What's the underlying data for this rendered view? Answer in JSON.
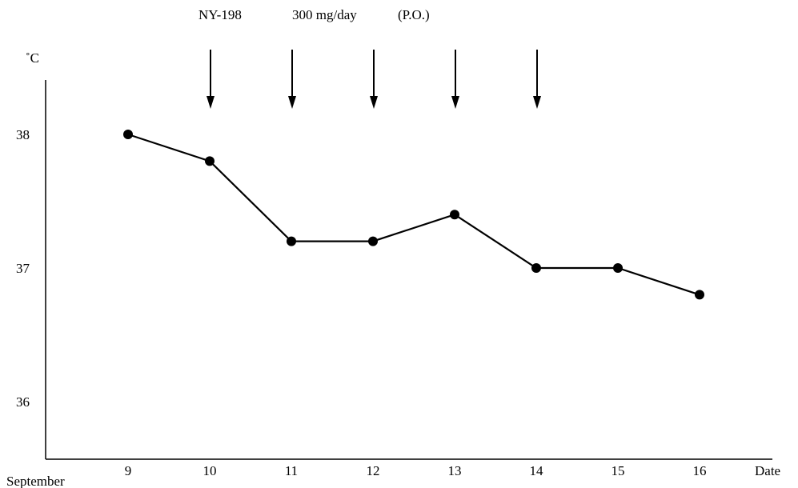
{
  "chart_data": {
    "type": "line",
    "header": [
      "NY-198",
      "300 mg/day",
      "(P.O.)"
    ],
    "y_unit": "˚C",
    "x_axis_label": "Date",
    "x_group_label": "September",
    "x": [
      9,
      10,
      11,
      12,
      13,
      14,
      15,
      16
    ],
    "series": [
      {
        "values": [
          38.0,
          37.8,
          37.2,
          37.2,
          37.4,
          37.0,
          37.0,
          36.8
        ]
      }
    ],
    "dose_days": [
      10,
      11,
      12,
      13,
      14
    ],
    "xlim": [
      8,
      16
    ],
    "ylim": [
      35.6,
      38.4
    ],
    "yticks": [
      36,
      37,
      38
    ],
    "grid": false,
    "marker": "filled-circle",
    "color": "#000000"
  }
}
